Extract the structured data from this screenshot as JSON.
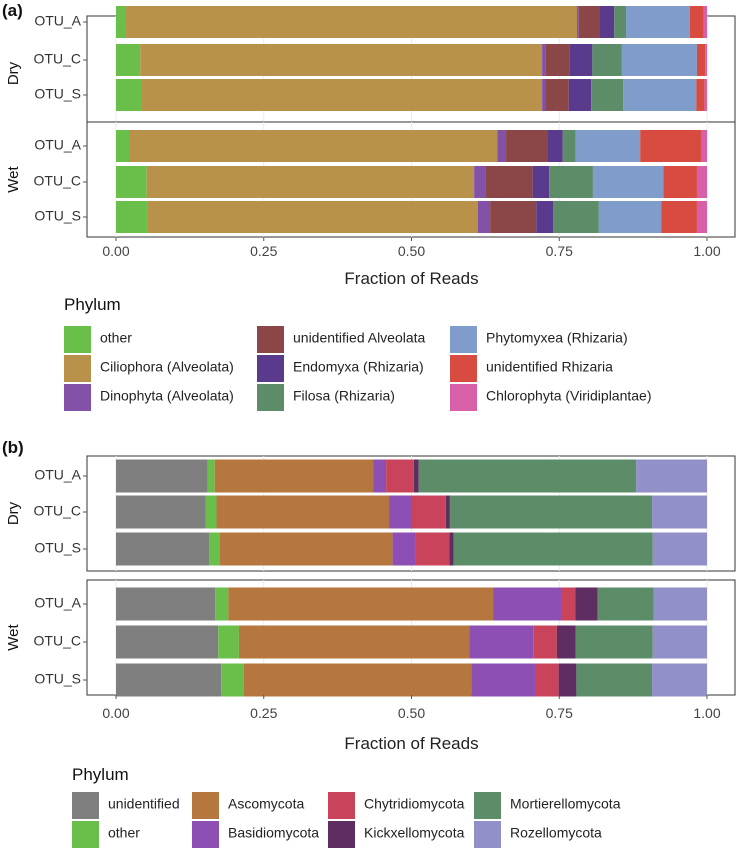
{
  "chart_data": [
    {
      "panel_label": "(a)",
      "type": "bar",
      "orientation": "horizontal",
      "stacked": true,
      "xlabel": "Fraction of Reads",
      "xlim": [
        0,
        1
      ],
      "xticks": [
        "0.00",
        "0.25",
        "0.50",
        "0.75",
        "1.00"
      ],
      "legend_title": "Phylum",
      "legend_position": "bottom",
      "categories": [
        "other",
        "Ciliophora (Alveolata)",
        "Dinophyta (Alveolata)",
        "unidentified Alveolata",
        "Endomyxa (Rhizaria)",
        "Filosa (Rhizaria)",
        "Phytomyxea (Rhizaria)",
        "unidentified Rhizaria",
        "Chlorophyta (Viridiplantae)"
      ],
      "colors": [
        "#6abf4b",
        "#b8914a",
        "#8352a8",
        "#8b4747",
        "#5a3a8c",
        "#5d8c68",
        "#7f9ccb",
        "#d84b40",
        "#d860a8"
      ],
      "facets": [
        {
          "name": "Dry",
          "rows": [
            {
              "label": "OTU_A",
              "values": [
                0.017,
                0.763,
                0.003,
                0.035,
                0.025,
                0.02,
                0.108,
                0.023,
                0.006
              ]
            },
            {
              "label": "OTU_C",
              "values": [
                0.041,
                0.68,
                0.006,
                0.04,
                0.039,
                0.05,
                0.127,
                0.014,
                0.003
              ]
            },
            {
              "label": "OTU_S",
              "values": [
                0.044,
                0.677,
                0.005,
                0.04,
                0.038,
                0.054,
                0.124,
                0.014,
                0.004
              ]
            }
          ]
        },
        {
          "name": "Wet",
          "rows": [
            {
              "label": "OTU_A",
              "values": [
                0.022,
                0.623,
                0.015,
                0.07,
                0.026,
                0.022,
                0.109,
                0.104,
                0.009
              ]
            },
            {
              "label": "OTU_C",
              "values": [
                0.052,
                0.554,
                0.02,
                0.079,
                0.028,
                0.074,
                0.119,
                0.057,
                0.017
              ]
            },
            {
              "label": "OTU_S",
              "values": [
                0.054,
                0.558,
                0.021,
                0.078,
                0.029,
                0.077,
                0.106,
                0.06,
                0.017
              ]
            }
          ]
        }
      ]
    },
    {
      "panel_label": "(b)",
      "type": "bar",
      "orientation": "horizontal",
      "stacked": true,
      "xlabel": "Fraction of Reads",
      "xlim": [
        0,
        1
      ],
      "xticks": [
        "0.00",
        "0.25",
        "0.50",
        "0.75",
        "1.00"
      ],
      "legend_title": "Phylum",
      "legend_position": "bottom",
      "categories": [
        "unidentified",
        "other",
        "Ascomycota",
        "Basidiomycota",
        "Chytridiomycota",
        "Kickxellomycota",
        "Mortierellomycota",
        "Rozellomycota"
      ],
      "colors": [
        "#7f7f7f",
        "#6abf4b",
        "#b5773d",
        "#8e4fb5",
        "#c9445a",
        "#5e2d62",
        "#5d8c68",
        "#9190c8"
      ],
      "facets": [
        {
          "name": "Dry",
          "rows": [
            {
              "label": "OTU_A",
              "values": [
                0.155,
                0.012,
                0.268,
                0.022,
                0.047,
                0.008,
                0.368,
                0.12
              ]
            },
            {
              "label": "OTU_C",
              "values": [
                0.152,
                0.018,
                0.292,
                0.038,
                0.058,
                0.007,
                0.342,
                0.093
              ]
            },
            {
              "label": "OTU_S",
              "values": [
                0.158,
                0.018,
                0.292,
                0.038,
                0.058,
                0.007,
                0.337,
                0.092
              ]
            }
          ]
        },
        {
          "name": "Wet",
          "rows": [
            {
              "label": "OTU_A",
              "values": [
                0.168,
                0.022,
                0.448,
                0.115,
                0.024,
                0.038,
                0.095,
                0.09
              ]
            },
            {
              "label": "OTU_C",
              "values": [
                0.173,
                0.035,
                0.39,
                0.108,
                0.04,
                0.032,
                0.13,
                0.092
              ]
            },
            {
              "label": "OTU_S",
              "values": [
                0.178,
                0.038,
                0.385,
                0.108,
                0.04,
                0.03,
                0.128,
                0.093
              ]
            }
          ]
        }
      ]
    }
  ]
}
